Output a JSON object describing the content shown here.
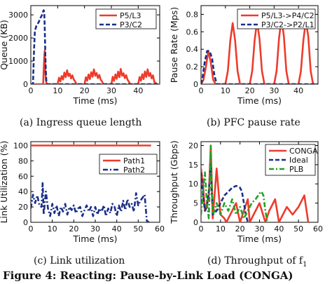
{
  "figure_caption": "Figure 4: Reacting: Pause-by-Link Load (CONGA)",
  "chart_data": [
    {
      "id": "a",
      "type": "line",
      "caption": "(a)  Ingress queue length",
      "xlabel": "Time (ms)",
      "ylabel": "Queue (KB)",
      "xlim": [
        0,
        48
      ],
      "ylim": [
        0,
        3400
      ],
      "xticks": [
        0,
        10,
        20,
        30,
        40
      ],
      "yticks": [
        0,
        1000,
        2000,
        3000
      ],
      "grid": false,
      "legend_position": "top-right",
      "series": [
        {
          "name": "P5/L3",
          "color": "#ee3b2b",
          "style": "solid",
          "x": [
            0,
            4.6,
            4.8,
            5.0,
            5.2,
            5.4,
            5.6,
            5.8,
            6.0,
            6.2,
            7,
            10,
            10.5,
            11,
            11.5,
            12,
            12.5,
            13,
            13.5,
            14,
            14.5,
            15,
            15.5,
            16,
            16.5,
            17,
            18,
            20,
            20.5,
            21,
            21.5,
            22,
            22.5,
            23,
            23.5,
            24,
            24.5,
            25,
            25.5,
            26,
            26.5,
            27,
            28,
            30,
            30.5,
            31,
            31.5,
            32,
            32.5,
            33,
            33.5,
            34,
            34.5,
            35,
            35.5,
            36,
            36.5,
            37,
            38,
            40,
            40.5,
            41,
            41.5,
            42,
            42.5,
            43,
            43.5,
            44,
            44.5,
            45,
            45.5,
            46,
            47,
            48
          ],
          "y": [
            0,
            0,
            600,
            1200,
            1450,
            600,
            200,
            60,
            20,
            0,
            0,
            0,
            280,
            120,
            350,
            200,
            500,
            300,
            600,
            350,
            450,
            250,
            380,
            200,
            120,
            0,
            0,
            0,
            300,
            150,
            420,
            220,
            520,
            320,
            640,
            360,
            480,
            260,
            400,
            200,
            120,
            0,
            0,
            0,
            320,
            140,
            420,
            230,
            540,
            300,
            660,
            360,
            470,
            260,
            390,
            200,
            110,
            0,
            0,
            0,
            310,
            150,
            430,
            220,
            550,
            310,
            640,
            350,
            480,
            250,
            380,
            100,
            0,
            0
          ]
        },
        {
          "name": "P3/C2",
          "color": "#1a2f86",
          "style": "dashed",
          "x": [
            0,
            0.8,
            1.2,
            1.5,
            2,
            2.5,
            3,
            3.5,
            4,
            4.4,
            4.6,
            4.8,
            5.0,
            5.2,
            5.4,
            5.6,
            5.8,
            6.0,
            48
          ],
          "y": [
            0,
            0,
            1500,
            2300,
            2500,
            2600,
            2700,
            2850,
            2950,
            3050,
            3150,
            3200,
            3100,
            2400,
            1300,
            500,
            120,
            0,
            0
          ]
        }
      ]
    },
    {
      "id": "b",
      "type": "line",
      "caption": "(b)  PFC pause rate",
      "xlabel": "Time (ms)",
      "ylabel": "Pause Rate (Mps)",
      "xlim": [
        0,
        48
      ],
      "ylim": [
        0,
        0.9
      ],
      "xticks": [
        0,
        10,
        20,
        30,
        40
      ],
      "yticks": [
        0,
        0.2,
        0.4,
        0.6,
        0.8
      ],
      "grid": false,
      "legend_position": "top-right",
      "series": [
        {
          "name": "P5/L3->P4/C2",
          "color": "#ee3b2b",
          "style": "solid",
          "x": [
            0,
            1,
            2,
            3,
            4,
            5,
            6,
            10,
            11,
            12,
            13,
            14,
            15,
            16,
            20,
            21,
            22,
            23,
            24,
            25,
            26,
            30,
            31,
            32,
            33,
            34,
            35,
            36,
            40,
            41,
            42,
            43,
            44,
            45,
            46,
            48
          ],
          "y": [
            0,
            0.05,
            0.2,
            0.38,
            0.25,
            0.05,
            0,
            0,
            0.15,
            0.5,
            0.7,
            0.5,
            0.15,
            0,
            0,
            0.15,
            0.5,
            0.72,
            0.52,
            0.15,
            0,
            0,
            0.15,
            0.52,
            0.75,
            0.55,
            0.15,
            0,
            0,
            0.15,
            0.5,
            0.72,
            0.55,
            0.15,
            0,
            0
          ]
        },
        {
          "name": "P3/C2->P2/L1",
          "color": "#1a2f86",
          "style": "dashed",
          "x": [
            0,
            0.5,
            1.5,
            2.5,
            3.5,
            4.5,
            5.5,
            6.5,
            48
          ],
          "y": [
            0,
            0.05,
            0.25,
            0.38,
            0.38,
            0.3,
            0.1,
            0,
            0
          ]
        }
      ]
    },
    {
      "id": "c",
      "type": "line",
      "caption": "(c)  Link utilization",
      "xlabel": "Time (ms)",
      "ylabel": "Link Utilization (%)",
      "xlim": [
        0,
        60
      ],
      "ylim": [
        0,
        105
      ],
      "xticks": [
        0,
        10,
        20,
        30,
        40,
        50,
        60
      ],
      "yticks": [
        0,
        20,
        40,
        60,
        80,
        100
      ],
      "grid": false,
      "legend_position": "top-right",
      "series": [
        {
          "name": "Path1",
          "color": "#ee3b2b",
          "style": "solid",
          "x": [
            0,
            56
          ],
          "y": [
            100,
            100
          ]
        },
        {
          "name": "Path2",
          "color": "#1a2f86",
          "style": "dashdot",
          "x": [
            0,
            1,
            2,
            3,
            4,
            5,
            5.5,
            6,
            7,
            8,
            9,
            10,
            11,
            12,
            13,
            14,
            15,
            16,
            17,
            18,
            19,
            20,
            21,
            22,
            23,
            24,
            25,
            26,
            27,
            28,
            29,
            30,
            31,
            32,
            33,
            34,
            35,
            36,
            37,
            38,
            39,
            40,
            41,
            42,
            43,
            44,
            45,
            46,
            47,
            48,
            49,
            50,
            51,
            52,
            53,
            54,
            55
          ],
          "y": [
            18,
            36,
            25,
            35,
            22,
            20,
            52,
            10,
            40,
            18,
            8,
            24,
            12,
            22,
            8,
            20,
            14,
            24,
            10,
            20,
            16,
            22,
            12,
            18,
            20,
            8,
            16,
            22,
            14,
            20,
            8,
            20,
            10,
            18,
            14,
            22,
            8,
            18,
            12,
            24,
            20,
            8,
            22,
            14,
            28,
            16,
            30,
            20,
            24,
            14,
            38,
            22,
            28,
            32,
            36,
            2,
            0
          ]
        }
      ]
    },
    {
      "id": "d",
      "type": "line",
      "caption": "(d)  Throughput of f",
      "caption_subscript": "1",
      "xlabel": "Time (ms)",
      "ylabel": "Throughput (Gbps)",
      "xlim": [
        0,
        60
      ],
      "ylim": [
        0,
        21
      ],
      "xticks": [
        0,
        10,
        20,
        30,
        40,
        50,
        60
      ],
      "yticks": [
        0,
        5,
        10,
        15,
        20
      ],
      "grid": false,
      "legend_position": "top-right",
      "series": [
        {
          "name": "CONGA",
          "color": "#ee3b2b",
          "style": "solid",
          "x": [
            0,
            1,
            2,
            4,
            5,
            6,
            8,
            10,
            12,
            13,
            15,
            18,
            20,
            22,
            24,
            25,
            27,
            30,
            33,
            35,
            38,
            40,
            42,
            44,
            47,
            50,
            53,
            55
          ],
          "y": [
            14,
            10,
            3,
            7,
            20,
            1,
            14,
            2,
            1,
            0,
            2,
            5,
            0,
            3,
            6,
            0,
            2,
            5,
            0,
            3,
            6,
            0,
            2,
            4,
            2,
            4,
            7,
            0
          ]
        },
        {
          "name": "Ideal",
          "color": "#1a2f86",
          "style": "dashed",
          "x": [
            0,
            1,
            2,
            3,
            4,
            5,
            6,
            8,
            10,
            12,
            14,
            16,
            18,
            20,
            21,
            22,
            23,
            24
          ],
          "y": [
            13,
            7,
            3,
            4,
            8,
            15,
            2,
            3,
            5,
            7,
            8,
            9,
            9.5,
            9,
            8,
            5,
            2,
            0
          ]
        },
        {
          "name": "PLB",
          "color": "#25a022",
          "style": "dashdot",
          "x": [
            0,
            1,
            2,
            3,
            4,
            5,
            6,
            7,
            8,
            10,
            12,
            14,
            16,
            18,
            20,
            22,
            24,
            26,
            28,
            30,
            31,
            32,
            33,
            34
          ],
          "y": [
            2,
            8,
            13,
            5,
            1,
            20,
            2,
            3,
            5,
            2,
            5,
            3,
            6,
            2,
            4,
            1,
            3,
            5,
            6,
            7.5,
            8,
            7,
            3,
            0
          ]
        }
      ]
    }
  ]
}
